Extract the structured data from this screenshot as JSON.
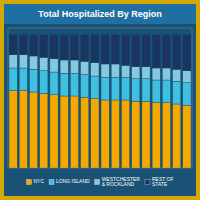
{
  "chart_data": {
    "type": "bar",
    "title": "Total Hospitalized By Region",
    "stacked": true,
    "categories": [
      null,
      null,
      null,
      null,
      null,
      null,
      null,
      null,
      null,
      null,
      null,
      null,
      null,
      null,
      null,
      null,
      null,
      null
    ],
    "series": [
      {
        "name": "NYC",
        "color": "#f5a800",
        "values": [
          0.58,
          0.58,
          0.57,
          0.56,
          0.55,
          0.54,
          0.54,
          0.53,
          0.52,
          0.51,
          0.51,
          0.51,
          0.5,
          0.5,
          0.49,
          0.49,
          0.48,
          0.47
        ]
      },
      {
        "name": "LONG ISLAND",
        "color": "#40c0e0",
        "values": [
          0.17,
          0.17,
          0.17,
          0.17,
          0.17,
          0.17,
          0.17,
          0.17,
          0.17,
          0.17,
          0.17,
          0.17,
          0.17,
          0.17,
          0.17,
          0.17,
          0.17,
          0.17
        ]
      },
      {
        "name": "WESTCHESTER\n& ROCKLAND",
        "color": "#85c8e0",
        "values": [
          0.1,
          0.1,
          0.1,
          0.1,
          0.1,
          0.1,
          0.1,
          0.1,
          0.1,
          0.1,
          0.1,
          0.09,
          0.09,
          0.09,
          0.09,
          0.09,
          0.09,
          0.09
        ]
      },
      {
        "name": "REST OF\nSTATE",
        "color": "#1a3560",
        "values": [
          0.15,
          0.15,
          0.16,
          0.17,
          0.18,
          0.19,
          0.19,
          0.2,
          0.21,
          0.22,
          0.22,
          0.23,
          0.24,
          0.24,
          0.25,
          0.25,
          0.26,
          0.27
        ]
      }
    ],
    "ylim": [
      0,
      1.05
    ],
    "tick_labels": false,
    "legend": "bottom"
  }
}
